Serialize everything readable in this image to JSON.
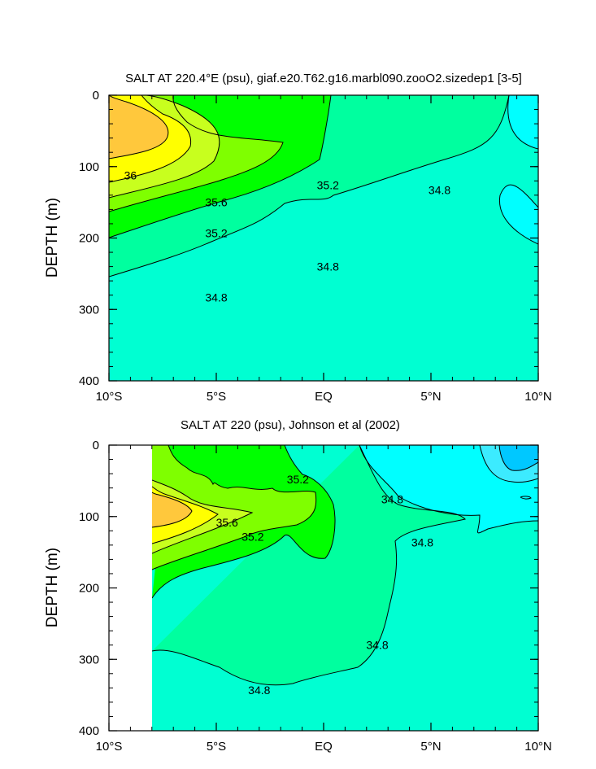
{
  "chart_data": [
    {
      "type": "contour",
      "title": "SALT AT 220.4°E (psu), giaf.e20.T62.g16.marbl090.zooO2.sizedep1 [3-5]",
      "ylabel": "DEPTH (m)",
      "xlim": [
        -10,
        10
      ],
      "ylim": [
        0,
        400
      ],
      "y_inverted": true,
      "x_ticks": [
        {
          "value": -10,
          "label": "10°S"
        },
        {
          "value": -5,
          "label": "5°S"
        },
        {
          "value": 0,
          "label": "EQ"
        },
        {
          "value": 5,
          "label": "5°N"
        },
        {
          "value": 10,
          "label": "10°N"
        }
      ],
      "y_ticks": [
        0,
        100,
        200,
        300,
        400
      ],
      "contour_levels": [
        34.6,
        34.8,
        35.0,
        35.2,
        35.4,
        35.6,
        35.8,
        36.0,
        36.2
      ],
      "level_colors": {
        "lt_34.6": "#00ffff",
        "34.6_34.8": "#00ffd2",
        "34.8_35.2": "#00ff9f",
        "35.2_35.4": "#00ff00",
        "35.4_35.6": "#7fff00",
        "35.6_35.8": "#c8ff1e",
        "35.8_36.2": "#ffff00",
        "gt_36.2": "#ffc83c"
      },
      "contour_labels": [
        {
          "text": "36",
          "x": -9.0,
          "y": 112
        },
        {
          "text": "35.6",
          "x": -5.0,
          "y": 150
        },
        {
          "text": "35.2",
          "x": -5.0,
          "y": 193
        },
        {
          "text": "35.2",
          "x": 0.2,
          "y": 126
        },
        {
          "text": "34.8",
          "x": 5.4,
          "y": 133
        },
        {
          "text": "34.8",
          "x": 0.2,
          "y": 240
        },
        {
          "text": "34.8",
          "x": -5.0,
          "y": 283
        }
      ]
    },
    {
      "type": "contour",
      "title": "SALT AT 220 (psu), Johnson et al (2002)",
      "ylabel": "DEPTH (m)",
      "xlim": [
        -10,
        10
      ],
      "ylim": [
        0,
        400
      ],
      "y_inverted": true,
      "data_extent_x": [
        -8.0,
        10
      ],
      "x_ticks": [
        {
          "value": -10,
          "label": "10°S"
        },
        {
          "value": -5,
          "label": "5°S"
        },
        {
          "value": 0,
          "label": "EQ"
        },
        {
          "value": 5,
          "label": "5°N"
        },
        {
          "value": 10,
          "label": "10°N"
        }
      ],
      "y_ticks": [
        0,
        100,
        200,
        300,
        400
      ],
      "contour_levels": [
        34.4,
        34.6,
        34.8,
        35.0,
        35.2,
        35.4,
        35.6,
        35.8,
        36.0
      ],
      "level_colors": {
        "lt_34.4": "#00c8ff",
        "34.4_34.6": "#3cebff",
        "34.6_34.8": "#00ffff",
        "34.8_35.0": "#00ffd2",
        "35.0_35.2": "#00ff9f",
        "35.2_35.4": "#00ff00",
        "35.4_35.6": "#7fff00",
        "35.6_35.8": "#c8ff1e",
        "35.8_36.0": "#ffff00",
        "gt_36.0": "#ffc83c"
      },
      "contour_labels": [
        {
          "text": "35.2",
          "x": -1.2,
          "y": 48
        },
        {
          "text": "35.6",
          "x": -4.5,
          "y": 108
        },
        {
          "text": "35.2",
          "x": -3.3,
          "y": 128
        },
        {
          "text": "34.8",
          "x": 3.2,
          "y": 76
        },
        {
          "text": "34.8",
          "x": 4.6,
          "y": 136
        },
        {
          "text": "34.8",
          "x": 2.5,
          "y": 280
        },
        {
          "text": "34.8",
          "x": -3.0,
          "y": 343
        }
      ]
    }
  ]
}
